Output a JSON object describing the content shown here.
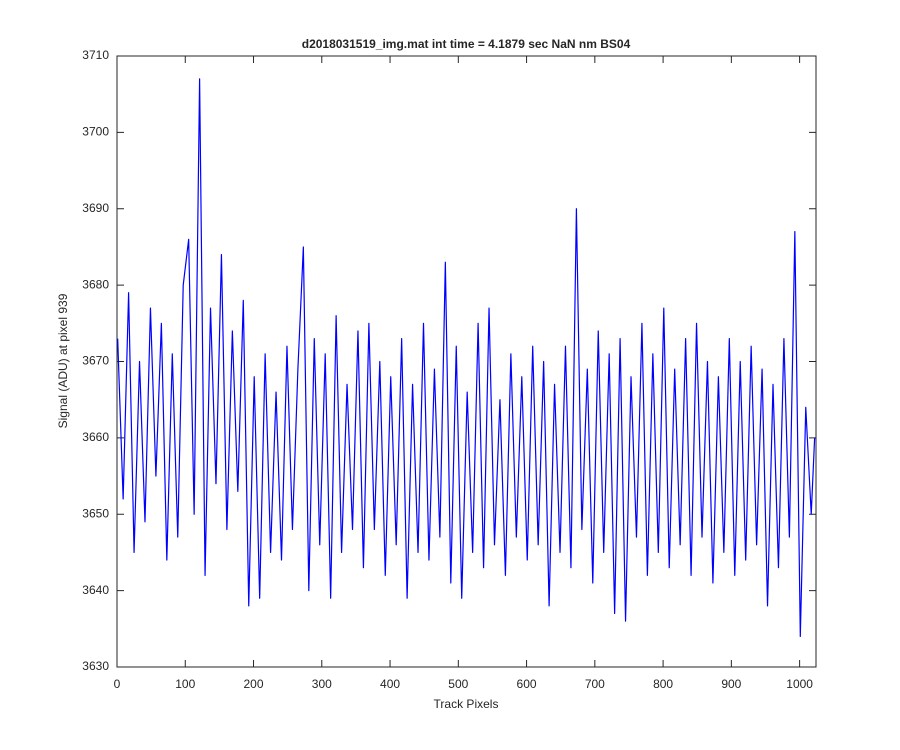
{
  "chart_data": {
    "type": "line",
    "title": "d2018031519_img.mat int time = 4.1879 sec  NaN nm BS04",
    "x_label": "Track Pixels",
    "y_label": "Signal (ADU) at pixel 939",
    "color": "#0000ff",
    "x": [
      1,
      9,
      17,
      25,
      33,
      41,
      49,
      57,
      65,
      73,
      81,
      89,
      97,
      105,
      113,
      121,
      129,
      137,
      145,
      153,
      161,
      169,
      177,
      185,
      193,
      201,
      209,
      217,
      225,
      233,
      241,
      249,
      257,
      265,
      273,
      281,
      289,
      297,
      305,
      313,
      321,
      329,
      337,
      345,
      353,
      361,
      369,
      377,
      385,
      393,
      401,
      409,
      417,
      425,
      433,
      441,
      449,
      457,
      465,
      473,
      481,
      489,
      497,
      505,
      513,
      521,
      529,
      537,
      545,
      553,
      561,
      569,
      577,
      585,
      593,
      601,
      609,
      617,
      625,
      633,
      641,
      649,
      657,
      665,
      673,
      681,
      689,
      697,
      705,
      713,
      721,
      729,
      737,
      745,
      753,
      761,
      769,
      777,
      785,
      793,
      801,
      809,
      817,
      825,
      833,
      841,
      849,
      857,
      865,
      873,
      881,
      889,
      897,
      905,
      913,
      921,
      929,
      937,
      945,
      953,
      961,
      969,
      977,
      985,
      993,
      1001,
      1009,
      1017,
      1022
    ],
    "values": [
      3673,
      3652,
      3679,
      3645,
      3670,
      3649,
      3677,
      3655,
      3675,
      3644,
      3671,
      3647,
      3680,
      3686,
      3650,
      3707,
      3642,
      3677,
      3654,
      3684,
      3648,
      3674,
      3653,
      3678,
      3638,
      3668,
      3639,
      3671,
      3645,
      3666,
      3644,
      3672,
      3648,
      3669,
      3685,
      3640,
      3673,
      3646,
      3671,
      3639,
      3676,
      3645,
      3667,
      3648,
      3674,
      3643,
      3675,
      3648,
      3670,
      3642,
      3668,
      3646,
      3673,
      3639,
      3667,
      3645,
      3675,
      3644,
      3669,
      3647,
      3683,
      3641,
      3672,
      3639,
      3666,
      3645,
      3675,
      3643,
      3677,
      3646,
      3665,
      3642,
      3671,
      3647,
      3668,
      3644,
      3672,
      3646,
      3670,
      3638,
      3667,
      3645,
      3672,
      3643,
      3690,
      3648,
      3669,
      3641,
      3674,
      3645,
      3671,
      3637,
      3673,
      3636,
      3668,
      3647,
      3675,
      3642,
      3671,
      3645,
      3677,
      3643,
      3669,
      3646,
      3673,
      3642,
      3675,
      3647,
      3670,
      3641,
      3668,
      3645,
      3673,
      3642,
      3670,
      3644,
      3672,
      3646,
      3669,
      3638,
      3667,
      3643,
      3673,
      3647,
      3687,
      3634,
      3664,
      3650,
      3660
    ],
    "xlim": [
      0,
      1024
    ],
    "xticks": [
      0,
      100,
      200,
      300,
      400,
      500,
      600,
      700,
      800,
      900,
      1000
    ],
    "ylim": [
      3630,
      3710
    ],
    "yticks": [
      3630,
      3640,
      3650,
      3660,
      3670,
      3680,
      3690,
      3700,
      3710
    ],
    "grid": false
  }
}
